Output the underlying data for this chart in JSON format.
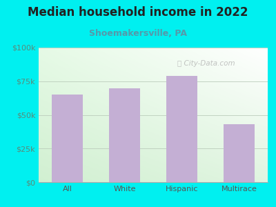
{
  "title": "Median household income in 2022",
  "subtitle": "Shoemakersville, PA",
  "categories": [
    "All",
    "White",
    "Hispanic",
    "Multirace"
  ],
  "values": [
    65000,
    70000,
    79000,
    43000
  ],
  "bar_color": "#c4afd4",
  "bg_color": "#00f0f0",
  "plot_bg_color_topleft": "#f0faf0",
  "plot_bg_color_topright": "#ffffff",
  "plot_bg_color_bottomleft": "#d8f0d8",
  "plot_bg_color_bottomright": "#f0faf0",
  "title_fontsize": 12,
  "subtitle_fontsize": 9,
  "ytick_color": "#5a8a7a",
  "xtick_color": "#555555",
  "watermark": "City-Data.com",
  "ylim": [
    0,
    100000
  ],
  "yticks": [
    0,
    25000,
    50000,
    75000,
    100000
  ],
  "ytick_labels": [
    "$0",
    "$25k",
    "$50k",
    "$75k",
    "$100k"
  ],
  "grid_color": "#bbccbb",
  "subtitle_color": "#5599aa"
}
